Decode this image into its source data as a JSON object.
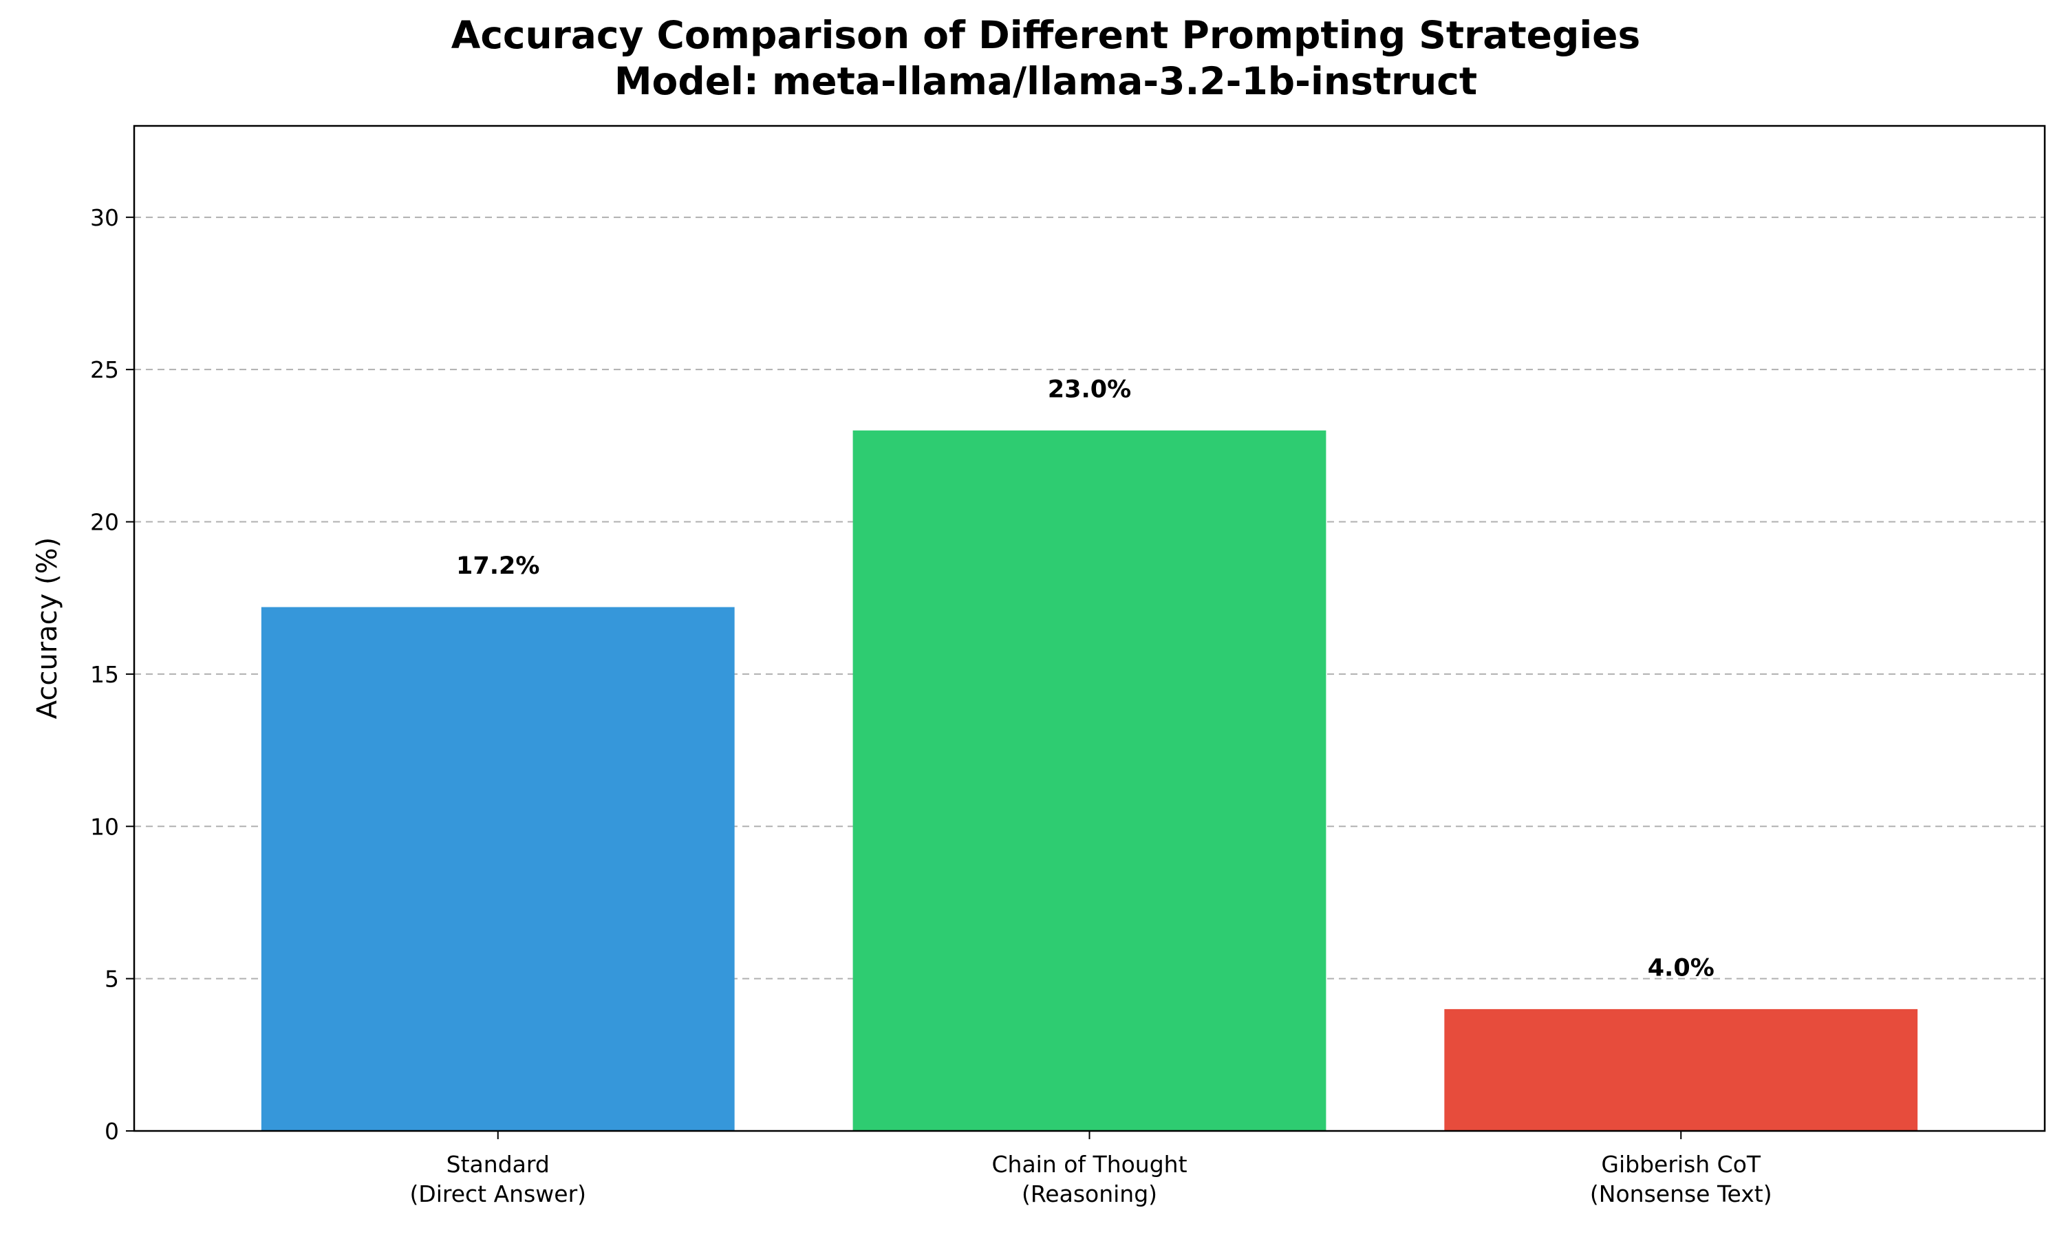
{
  "chart_data": {
    "type": "bar",
    "title_lines": [
      "Accuracy Comparison of Different Prompting Strategies",
      "Model: meta-llama/llama-3.2-1b-instruct"
    ],
    "xlabel": "",
    "ylabel": "Accuracy (%)",
    "ylim": [
      0,
      33
    ],
    "yticks": [
      0,
      5,
      10,
      15,
      20,
      25,
      30
    ],
    "grid": "y-dashed",
    "categories": [
      [
        "Standard",
        "(Direct Answer)"
      ],
      [
        "Chain of Thought",
        "(Reasoning)"
      ],
      [
        "Gibberish CoT",
        "(Nonsense Text)"
      ]
    ],
    "values": [
      17.2,
      23.0,
      4.0
    ],
    "value_labels": [
      "17.2%",
      "23.0%",
      "4.0%"
    ],
    "colors": [
      "#3697da",
      "#2ecc71",
      "#e74c3c"
    ]
  }
}
